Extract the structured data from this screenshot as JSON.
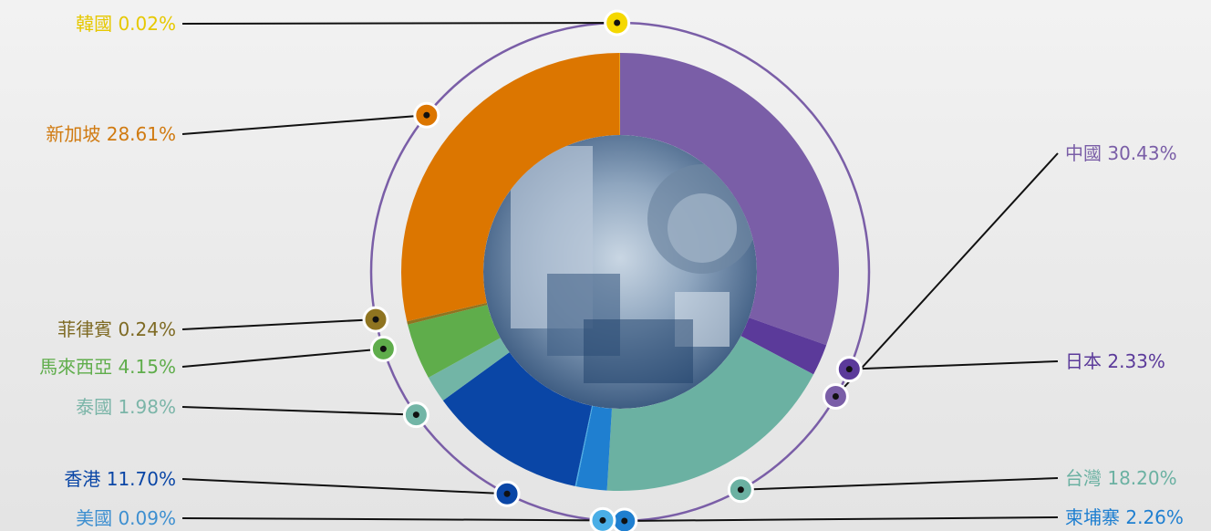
{
  "chart_data": {
    "type": "pie",
    "series": [
      {
        "name": "中國",
        "value": 30.43,
        "label": "中國 30.43%",
        "color": "#7a5ea7"
      },
      {
        "name": "日本",
        "value": 2.33,
        "label": "日本 2.33%",
        "color": "#5b3a9a"
      },
      {
        "name": "台灣",
        "value": 18.2,
        "label": "台灣 18.20%",
        "color": "#6bb1a2"
      },
      {
        "name": "柬埔寨",
        "value": 2.26,
        "label": "柬埔寨 2.26%",
        "color": "#1f7fd0"
      },
      {
        "name": "美國",
        "value": 0.09,
        "label": "美國 0.09%",
        "color": "#4aaee6"
      },
      {
        "name": "香港",
        "value": 11.7,
        "label": "香港 11.70%",
        "color": "#0a46a6"
      },
      {
        "name": "泰國",
        "value": 1.98,
        "label": "泰國 1.98%",
        "color": "#72b5a6"
      },
      {
        "name": "馬來西亞",
        "value": 4.15,
        "label": "馬來西亞 4.15%",
        "color": "#5fad4b"
      },
      {
        "name": "菲律賓",
        "value": 0.24,
        "label": "菲律賓 0.24%",
        "color": "#8f7420"
      },
      {
        "name": "新加坡",
        "value": 28.61,
        "label": "新加坡 28.61%",
        "color": "#dc7600"
      },
      {
        "name": "韓國",
        "value": 0.02,
        "label": "韓國 0.02%",
        "color": "#f5d800"
      }
    ],
    "label_colors": {
      "中國": "#7a5ea7",
      "日本": "#5b3a9a",
      "台灣": "#6bb1a2",
      "柬埔寨": "#1f7fd0",
      "美國": "#3d8fd0",
      "香港": "#0a46a6",
      "泰國": "#7bb5a8",
      "馬來西亞": "#5fad4b",
      "菲律賓": "#7e6a23",
      "新加坡": "#d07a10",
      "韓國": "#e6c800"
    },
    "ring_color": "#7a5ea7"
  }
}
